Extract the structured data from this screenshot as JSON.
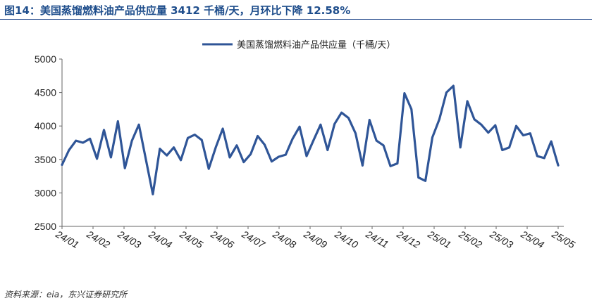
{
  "header": {
    "title": "图14：美国蒸馏燃料油产品供应量 3412 千桶/天，月环比下降 12.58%"
  },
  "footer": {
    "source": "资料来源：eia，东兴证券研究所"
  },
  "chart_data": {
    "type": "line",
    "title": "",
    "xlabel": "",
    "ylabel": "",
    "ylim": [
      2500,
      5000
    ],
    "yticks": [
      2500,
      3000,
      3500,
      4000,
      4500,
      5000
    ],
    "grid": false,
    "legend_position": "top-center",
    "line_color": "#2f5597",
    "x_tick_labels": [
      "24/01",
      "24/02",
      "24/03",
      "24/04",
      "24/05",
      "24/06",
      "24/07",
      "24/08",
      "24/09",
      "24/10",
      "24/11",
      "24/12",
      "25/01",
      "25/02",
      "25/03",
      "25/04",
      "25/05"
    ],
    "series": [
      {
        "name": "美国蒸馏燃料油产品供应量（千桶/天）",
        "values": [
          3420,
          3640,
          3780,
          3750,
          3810,
          3510,
          3940,
          3530,
          4070,
          3370,
          3780,
          4020,
          3500,
          2980,
          3660,
          3560,
          3680,
          3490,
          3820,
          3870,
          3790,
          3360,
          3680,
          3960,
          3530,
          3710,
          3460,
          3580,
          3850,
          3720,
          3470,
          3540,
          3570,
          3810,
          3990,
          3550,
          3790,
          4020,
          3640,
          4030,
          4200,
          4120,
          3890,
          3410,
          4090,
          3780,
          3710,
          3400,
          3440,
          4490,
          4250,
          3230,
          3180,
          3830,
          4100,
          4500,
          4600,
          3680,
          4370,
          4100,
          4020,
          3900,
          4010,
          3640,
          3680,
          4000,
          3860,
          3890,
          3550,
          3520,
          3770,
          3412
        ]
      }
    ]
  }
}
